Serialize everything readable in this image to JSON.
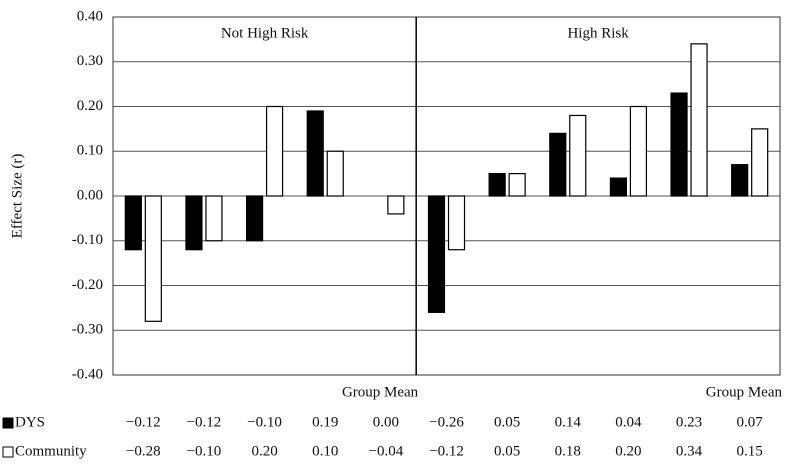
{
  "chart_data": {
    "type": "bar",
    "y_label": "Effect Size (r)",
    "groups": [
      {
        "name": "Not High Risk",
        "categories": [
          null,
          null,
          null,
          null,
          "Group Mean"
        ]
      },
      {
        "name": "High Risk",
        "categories": [
          null,
          null,
          null,
          null,
          null,
          "Group Mean"
        ]
      }
    ],
    "series": [
      {
        "name": "DYS",
        "color": "#000000",
        "values": [
          -0.12,
          -0.12,
          -0.1,
          0.19,
          0.0,
          -0.26,
          0.05,
          0.14,
          0.04,
          0.23,
          0.07
        ],
        "value_labels": [
          "−0.12",
          "−0.12",
          "−0.10",
          "0.19",
          "0.00",
          "−0.26",
          "0.05",
          "0.14",
          "0.04",
          "0.23",
          "0.07"
        ]
      },
      {
        "name": "Community",
        "color": "#ffffff",
        "values": [
          -0.28,
          -0.1,
          0.2,
          0.1,
          -0.04,
          -0.12,
          0.05,
          0.18,
          0.2,
          0.34,
          0.15
        ],
        "value_labels": [
          "−0.28",
          "−0.10",
          "0.20",
          "0.10",
          "−0.04",
          "−0.12",
          "0.05",
          "0.18",
          "0.20",
          "0.34",
          "0.15"
        ]
      }
    ],
    "ylim": [
      -0.4,
      0.4
    ],
    "yticks": [
      {
        "value": -0.4,
        "label": "-0.40"
      },
      {
        "value": -0.3,
        "label": "-0.30"
      },
      {
        "value": -0.2,
        "label": "-0.20"
      },
      {
        "value": -0.1,
        "label": "-0.10"
      },
      {
        "value": 0,
        "label": "0.00"
      },
      {
        "value": 0.1,
        "label": "0.10"
      },
      {
        "value": 0.2,
        "label": "0.20"
      },
      {
        "value": 0.3,
        "label": "0.30"
      },
      {
        "value": 0.4,
        "label": "0.40"
      }
    ],
    "grid": true
  }
}
